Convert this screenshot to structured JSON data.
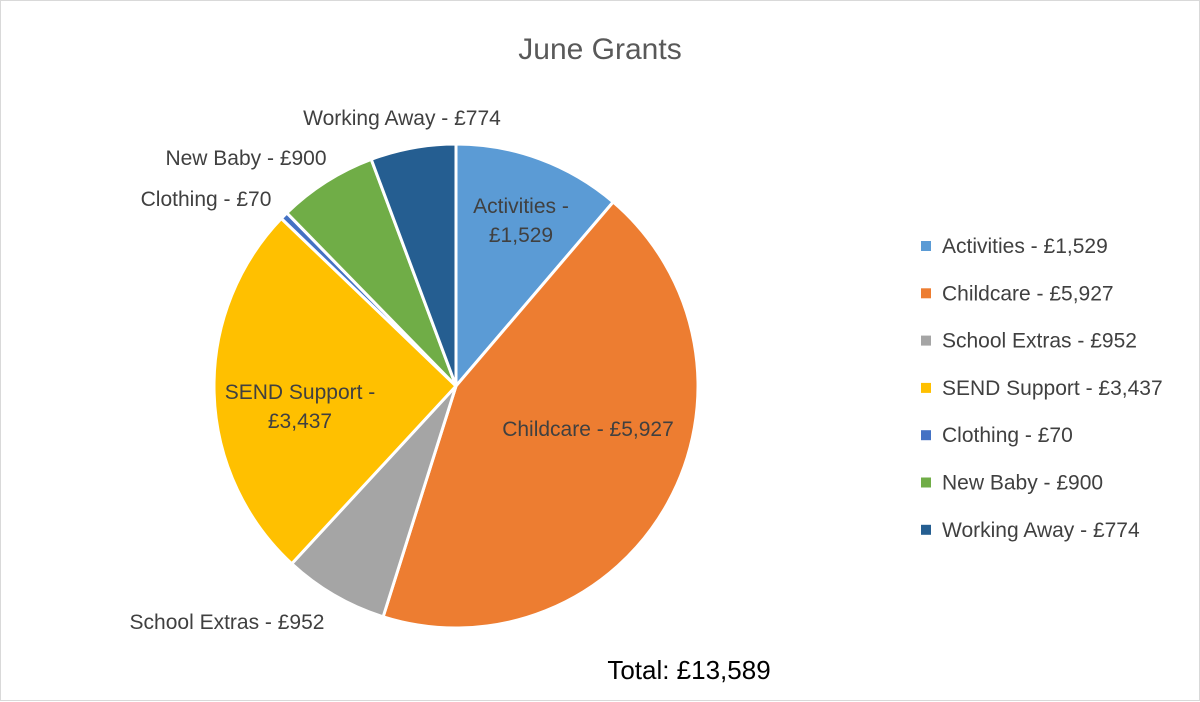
{
  "chart_data": {
    "type": "pie",
    "title": "June Grants",
    "slices": [
      {
        "name": "Activities",
        "value": 1529,
        "label": "Activities - £1,529",
        "color": "#5B9BD5"
      },
      {
        "name": "Childcare",
        "value": 5927,
        "label": "Childcare - £5,927",
        "color": "#ED7D31"
      },
      {
        "name": "School Extras",
        "value": 952,
        "label": "School Extras - £952",
        "color": "#A5A5A5"
      },
      {
        "name": "SEND Support",
        "value": 3437,
        "label": "SEND Support - £3,437",
        "color": "#FFC000"
      },
      {
        "name": "Clothing",
        "value": 70,
        "label": "Clothing - £70",
        "color": "#4472C4"
      },
      {
        "name": "New Baby",
        "value": 900,
        "label": "New Baby - £900",
        "color": "#70AD47"
      },
      {
        "name": "Working Away",
        "value": 774,
        "label": "Working Away - £774",
        "color": "#255E91"
      }
    ],
    "data_labels": [
      {
        "lines": [
          "Activities -",
          "£1,529"
        ]
      },
      {
        "lines": [
          "Childcare - £5,927"
        ]
      },
      {
        "lines": [
          "School Extras - £952"
        ]
      },
      {
        "lines": [
          "SEND Support -",
          "£3,437"
        ]
      },
      {
        "lines": [
          "Clothing - £70"
        ]
      },
      {
        "lines": [
          "New Baby - £900"
        ]
      },
      {
        "lines": [
          "Working Away - £774"
        ]
      }
    ],
    "legend_position": "right",
    "total_label": "Total: £13,589"
  }
}
